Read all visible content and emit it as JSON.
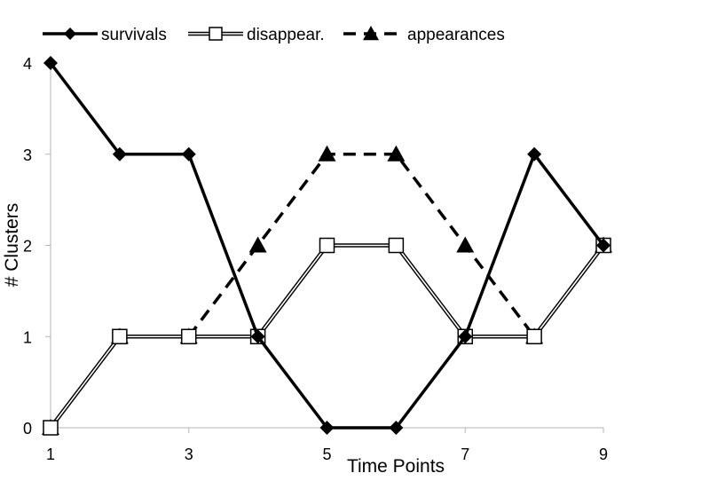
{
  "chart_data": {
    "type": "line",
    "title": "",
    "xlabel": "Time Points",
    "ylabel": "# Clusters",
    "x": [
      1,
      2,
      3,
      4,
      5,
      6,
      7,
      8,
      9
    ],
    "x_tick_labels": [
      "1",
      "3",
      "5",
      "7",
      "9"
    ],
    "x_tick_values": [
      1,
      3,
      5,
      7,
      9
    ],
    "y_tick_labels": [
      "0",
      "1",
      "2",
      "3",
      "4"
    ],
    "y_tick_values": [
      0,
      1,
      2,
      3,
      4
    ],
    "xlim": [
      1,
      9
    ],
    "ylim": [
      0,
      4
    ],
    "grid": false,
    "legend_position": "top",
    "series": [
      {
        "name": "survivals",
        "values": [
          4,
          3,
          3,
          1,
          0,
          0,
          1,
          3,
          2
        ],
        "color": "#000000",
        "line_style": "solid",
        "marker": "diamond-filled"
      },
      {
        "name": "disappear.",
        "values": [
          0,
          1,
          1,
          1,
          2,
          2,
          1,
          1,
          2
        ],
        "color": "#000000",
        "line_style": "double",
        "marker": "square-open"
      },
      {
        "name": "appearances",
        "values": [
          0,
          1,
          1,
          2,
          3,
          3,
          2,
          1,
          2
        ],
        "color": "#000000",
        "line_style": "dashed",
        "marker": "triangle-filled"
      }
    ]
  }
}
